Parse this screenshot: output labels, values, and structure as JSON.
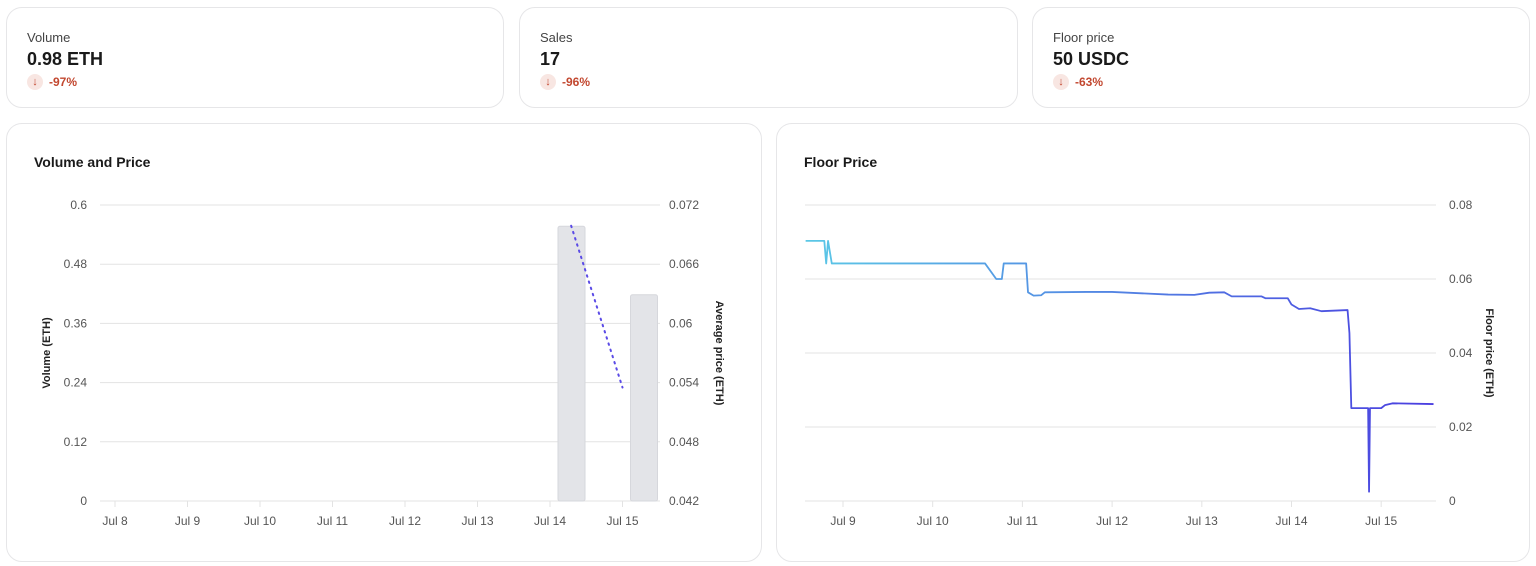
{
  "stats": [
    {
      "label": "Volume",
      "value": "0.98 ETH",
      "change": "-97%",
      "change_icon": "arrow-down-icon"
    },
    {
      "label": "Sales",
      "value": "17",
      "change": "-96%",
      "change_icon": "arrow-down-icon"
    },
    {
      "label": "Floor price",
      "value": "50 USDC",
      "change": "-63%",
      "change_icon": "arrow-down-icon"
    }
  ],
  "colors": {
    "negative": "#c2472f",
    "negative_bg": "#f8e6e2",
    "bar": "#e3e4e8",
    "price_dots": "#5b4be6",
    "floor_line_start": "#5bc8e6",
    "floor_line_end": "#4a3de0",
    "grid": "#e3e3e3"
  },
  "chart_data": [
    {
      "type": "bar",
      "title": "Volume and Price",
      "categories": [
        "Jul 8",
        "Jul 9",
        "Jul 10",
        "Jul 11",
        "Jul 12",
        "Jul 13",
        "Jul 14",
        "Jul 15"
      ],
      "ylabel": "Volume (ETH)",
      "ylim": [
        0,
        0.6
      ],
      "yticks": [
        "0",
        "0.12",
        "0.24",
        "0.36",
        "0.48",
        "0.6"
      ],
      "y2label": "Average price (ETH)",
      "y2lim": [
        0.042,
        0.072
      ],
      "y2ticks": [
        "0.042",
        "0.048",
        "0.054",
        "0.06",
        "0.066",
        "0.072"
      ],
      "grid": true,
      "series": [
        {
          "type": "bar",
          "axis": "left",
          "values": [
            0,
            0,
            0,
            0,
            0,
            0,
            0.557,
            0.418
          ]
        },
        {
          "type": "line",
          "style": "dotted",
          "axis": "right",
          "points": [
            [
              "Jul 14 07:00",
              0.0699
            ],
            [
              "Jul 15 00:00",
              0.0535
            ]
          ]
        }
      ]
    },
    {
      "type": "line",
      "title": "Floor Price",
      "xticks": [
        "Jul 9",
        "Jul 10",
        "Jul 11",
        "Jul 12",
        "Jul 13",
        "Jul 14",
        "Jul 15"
      ],
      "ylabel": "Floor price (ETH)",
      "ylim": [
        0,
        0.08
      ],
      "yticks": [
        "0",
        "0.02",
        "0.04",
        "0.06",
        "0.08"
      ],
      "grid": true,
      "points": [
        [
          "Jul 8 14:00",
          0.0703
        ],
        [
          "Jul 8 19:00",
          0.0703
        ],
        [
          "Jul 8 19:30",
          0.0642
        ],
        [
          "Jul 8 20:00",
          0.0703
        ],
        [
          "Jul 8 21:00",
          0.0642
        ],
        [
          "Jul 10 14:00",
          0.0642
        ],
        [
          "Jul 10 17:00",
          0.06
        ],
        [
          "Jul 10 18:30",
          0.06
        ],
        [
          "Jul 10 19:00",
          0.0642
        ],
        [
          "Jul 11 01:00",
          0.0642
        ],
        [
          "Jul 11 01:30",
          0.0564
        ],
        [
          "Jul 11 03:00",
          0.0555
        ],
        [
          "Jul 11 05:00",
          0.0556
        ],
        [
          "Jul 11 06:00",
          0.0564
        ],
        [
          "Jul 11 17:00",
          0.0565
        ],
        [
          "Jul 12 00:00",
          0.0565
        ],
        [
          "Jul 12 15:00",
          0.0558
        ],
        [
          "Jul 12 22:00",
          0.0557
        ],
        [
          "Jul 13 02:00",
          0.0563
        ],
        [
          "Jul 13 06:00",
          0.0564
        ],
        [
          "Jul 13 08:00",
          0.0553
        ],
        [
          "Jul 13 16:00",
          0.0553
        ],
        [
          "Jul 13 17:00",
          0.0548
        ],
        [
          "Jul 13 23:00",
          0.0548
        ],
        [
          "Jul 14 00:00",
          0.0531
        ],
        [
          "Jul 14 01:00",
          0.0525
        ],
        [
          "Jul 14 02:00",
          0.0519
        ],
        [
          "Jul 14 05:00",
          0.0521
        ],
        [
          "Jul 14 08:00",
          0.0513
        ],
        [
          "Jul 14 15:00",
          0.0516
        ],
        [
          "Jul 14 15:30",
          0.0454
        ],
        [
          "Jul 14 16:00",
          0.0251
        ],
        [
          "Jul 14 20:30",
          0.0251
        ],
        [
          "Jul 14 20:45",
          0.0025
        ],
        [
          "Jul 14 21:00",
          0.0251
        ],
        [
          "Jul 15 00:00",
          0.0251
        ],
        [
          "Jul 15 01:00",
          0.0259
        ],
        [
          "Jul 15 03:00",
          0.0264
        ],
        [
          "Jul 15 14:00",
          0.0262
        ]
      ]
    }
  ]
}
